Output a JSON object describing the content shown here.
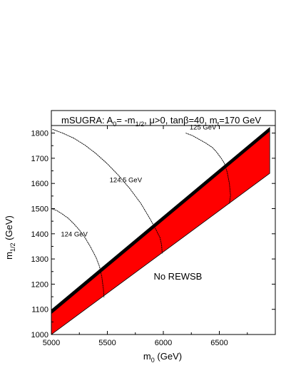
{
  "chart_data": {
    "type": "line",
    "title": {
      "prefix": "mSUGRA: A",
      "sub0": "0",
      "mid1": "= -m",
      "sub1": "1/2",
      "mid2": ", μ>0, tanβ=40, m",
      "sub2": "t",
      "suffix": "=170 GeV"
    },
    "xlabel": {
      "main": "m",
      "sub": "0",
      "unit": " (GeV)"
    },
    "ylabel": {
      "main": "m",
      "sub": "1/2",
      "unit": " (GeV)"
    },
    "xlim": [
      5000,
      7000
    ],
    "ylim": [
      1000,
      1830
    ],
    "xticks": [
      5000,
      5500,
      6000,
      6500
    ],
    "yticks": [
      1000,
      1100,
      1200,
      1300,
      1400,
      1500,
      1600,
      1700,
      1800
    ],
    "grid": false,
    "colors": {
      "excluded": "#ff0000",
      "boundary": "#000000",
      "contour": "#000000"
    },
    "regions": [
      {
        "name": "No REWSB",
        "fill": "#ff0000",
        "polygon": [
          [
            5000,
            1000
          ],
          [
            6950,
            1640
          ],
          [
            6950,
            1815
          ],
          [
            5000,
            1095
          ]
        ]
      },
      {
        "name": "boundary-band",
        "fill": "#000000",
        "polygon": [
          [
            5000,
            1083
          ],
          [
            6950,
            1808
          ],
          [
            6950,
            1822
          ],
          [
            5000,
            1098
          ]
        ]
      }
    ],
    "region_label": {
      "text": "No REWSB",
      "x": 6130,
      "y": 1218
    },
    "series": [
      {
        "name": "124 GeV",
        "label_at": [
          5085,
          1390
        ],
        "points": [
          [
            5000,
            1500
          ],
          [
            5050,
            1492
          ],
          [
            5100,
            1478
          ],
          [
            5150,
            1462
          ],
          [
            5200,
            1440
          ],
          [
            5250,
            1415
          ],
          [
            5300,
            1385
          ],
          [
            5350,
            1348
          ],
          [
            5400,
            1305
          ],
          [
            5430,
            1270
          ],
          [
            5450,
            1230
          ],
          [
            5465,
            1180
          ],
          [
            5470,
            1148
          ]
        ]
      },
      {
        "name": "124.5 GeV",
        "label_at": [
          5520,
          1605
        ],
        "points": [
          [
            5010,
            1815
          ],
          [
            5100,
            1800
          ],
          [
            5200,
            1780
          ],
          [
            5300,
            1752
          ],
          [
            5400,
            1718
          ],
          [
            5500,
            1678
          ],
          [
            5600,
            1632
          ],
          [
            5700,
            1580
          ],
          [
            5800,
            1520
          ],
          [
            5880,
            1460
          ],
          [
            5930,
            1420
          ],
          [
            5970,
            1385
          ],
          [
            5985,
            1355
          ],
          [
            5990,
            1322
          ]
        ]
      },
      {
        "name": "125 GeV",
        "label_at": [
          6235,
          1815
        ],
        "points": [
          [
            6200,
            1800
          ],
          [
            6260,
            1790
          ],
          [
            6320,
            1775
          ],
          [
            6380,
            1760
          ],
          [
            6440,
            1742
          ],
          [
            6480,
            1722
          ],
          [
            6520,
            1698
          ],
          [
            6545,
            1680
          ],
          [
            6570,
            1645
          ],
          [
            6590,
            1600
          ],
          [
            6600,
            1552
          ],
          [
            6590,
            1520
          ]
        ]
      }
    ]
  }
}
